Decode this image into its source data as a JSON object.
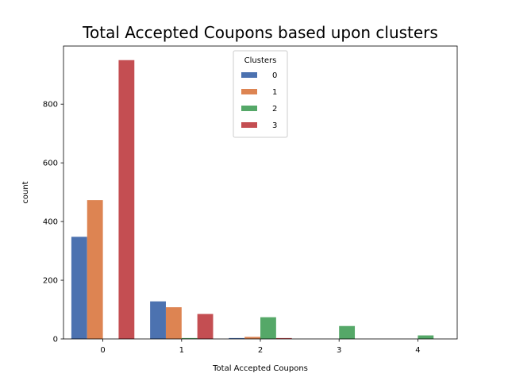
{
  "chart_data": {
    "type": "bar",
    "title": "Total Accepted Coupons based upon clusters",
    "xlabel": "Total Accepted Coupons",
    "ylabel": "count",
    "categories": [
      "0",
      "1",
      "2",
      "3",
      "4"
    ],
    "ylim": [
      0,
      998
    ],
    "yticks": [
      0,
      200,
      400,
      600,
      800
    ],
    "legend": {
      "title": "Clusters",
      "placement": "top-center"
    },
    "series": [
      {
        "name": "0",
        "color": "#4c72b0",
        "values": [
          348,
          128,
          3,
          0,
          0
        ]
      },
      {
        "name": "1",
        "color": "#dd8452",
        "values": [
          473,
          108,
          7,
          0,
          0
        ]
      },
      {
        "name": "2",
        "color": "#55a868",
        "values": [
          0,
          3,
          74,
          44,
          12
        ]
      },
      {
        "name": "3",
        "color": "#c44e52",
        "values": [
          950,
          85,
          3,
          0,
          0
        ]
      }
    ]
  }
}
